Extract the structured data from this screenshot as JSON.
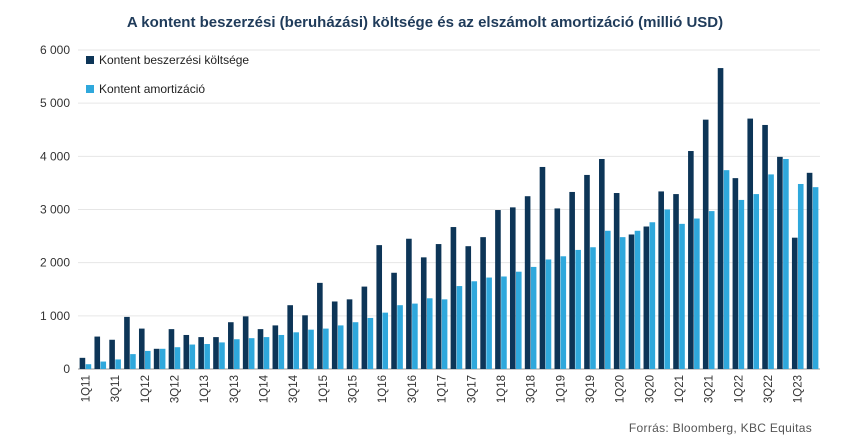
{
  "chart_data": {
    "type": "bar",
    "title": "A kontent beszerzési (beruházási) költsége és az elszámolt amortizáció (millió USD)",
    "xlabel": "",
    "ylabel": "",
    "ylim": [
      0,
      6000
    ],
    "yticks": [
      0,
      1000,
      2000,
      3000,
      4000,
      5000,
      6000
    ],
    "ytick_labels": [
      "0",
      "1 000",
      "2 000",
      "3 000",
      "4 000",
      "5 000",
      "6 000"
    ],
    "x_tick_labels": [
      "1Q11",
      "3Q11",
      "1Q12",
      "3Q12",
      "1Q13",
      "3Q13",
      "1Q14",
      "3Q14",
      "1Q15",
      "3Q15",
      "1Q16",
      "3Q16",
      "1Q17",
      "3Q17",
      "1Q18",
      "3Q18",
      "1Q19",
      "3Q19",
      "1Q20",
      "3Q20",
      "1Q21",
      "3Q21",
      "1Q22",
      "3Q22",
      "1Q23"
    ],
    "categories": [
      "1Q11",
      "2Q11",
      "3Q11",
      "4Q11",
      "1Q12",
      "2Q12",
      "3Q12",
      "4Q12",
      "1Q13",
      "2Q13",
      "3Q13",
      "4Q13",
      "1Q14",
      "2Q14",
      "3Q14",
      "4Q14",
      "1Q15",
      "2Q15",
      "3Q15",
      "4Q15",
      "1Q16",
      "2Q16",
      "3Q16",
      "4Q16",
      "1Q17",
      "2Q17",
      "3Q17",
      "4Q17",
      "1Q18",
      "2Q18",
      "3Q18",
      "4Q18",
      "1Q19",
      "2Q19",
      "3Q19",
      "4Q19",
      "1Q20",
      "2Q20",
      "3Q20",
      "4Q20",
      "1Q21",
      "2Q21",
      "3Q21",
      "4Q21",
      "1Q22",
      "2Q22",
      "3Q22",
      "4Q22",
      "1Q23",
      "2Q23"
    ],
    "series": [
      {
        "name": "Kontent beszerzési költsége",
        "color": "#0d3557",
        "values": [
          210,
          610,
          550,
          980,
          760,
          380,
          750,
          640,
          600,
          600,
          880,
          990,
          750,
          820,
          1200,
          1010,
          1620,
          1270,
          1310,
          1550,
          2330,
          1810,
          2450,
          2100,
          2350,
          2670,
          2310,
          2480,
          2990,
          3040,
          3250,
          3800,
          3020,
          3330,
          3650,
          3950,
          3310,
          2530,
          2680,
          3340,
          3290,
          4100,
          4690,
          5660,
          3590,
          4710,
          4590,
          3990,
          2470,
          3690
        ]
      },
      {
        "name": "Kontent amortizáció",
        "color": "#2fa8dc",
        "values": [
          90,
          140,
          180,
          280,
          340,
          380,
          410,
          460,
          470,
          500,
          560,
          580,
          600,
          640,
          690,
          740,
          760,
          820,
          880,
          960,
          1060,
          1200,
          1230,
          1330,
          1310,
          1560,
          1650,
          1720,
          1740,
          1830,
          1920,
          2060,
          2120,
          2240,
          2290,
          2600,
          2480,
          2600,
          2760,
          3000,
          2730,
          2830,
          2970,
          3740,
          3180,
          3290,
          3660,
          3950,
          3480,
          3420
        ]
      }
    ]
  },
  "source": "Forrás: Bloomberg,  KBC Equitas"
}
